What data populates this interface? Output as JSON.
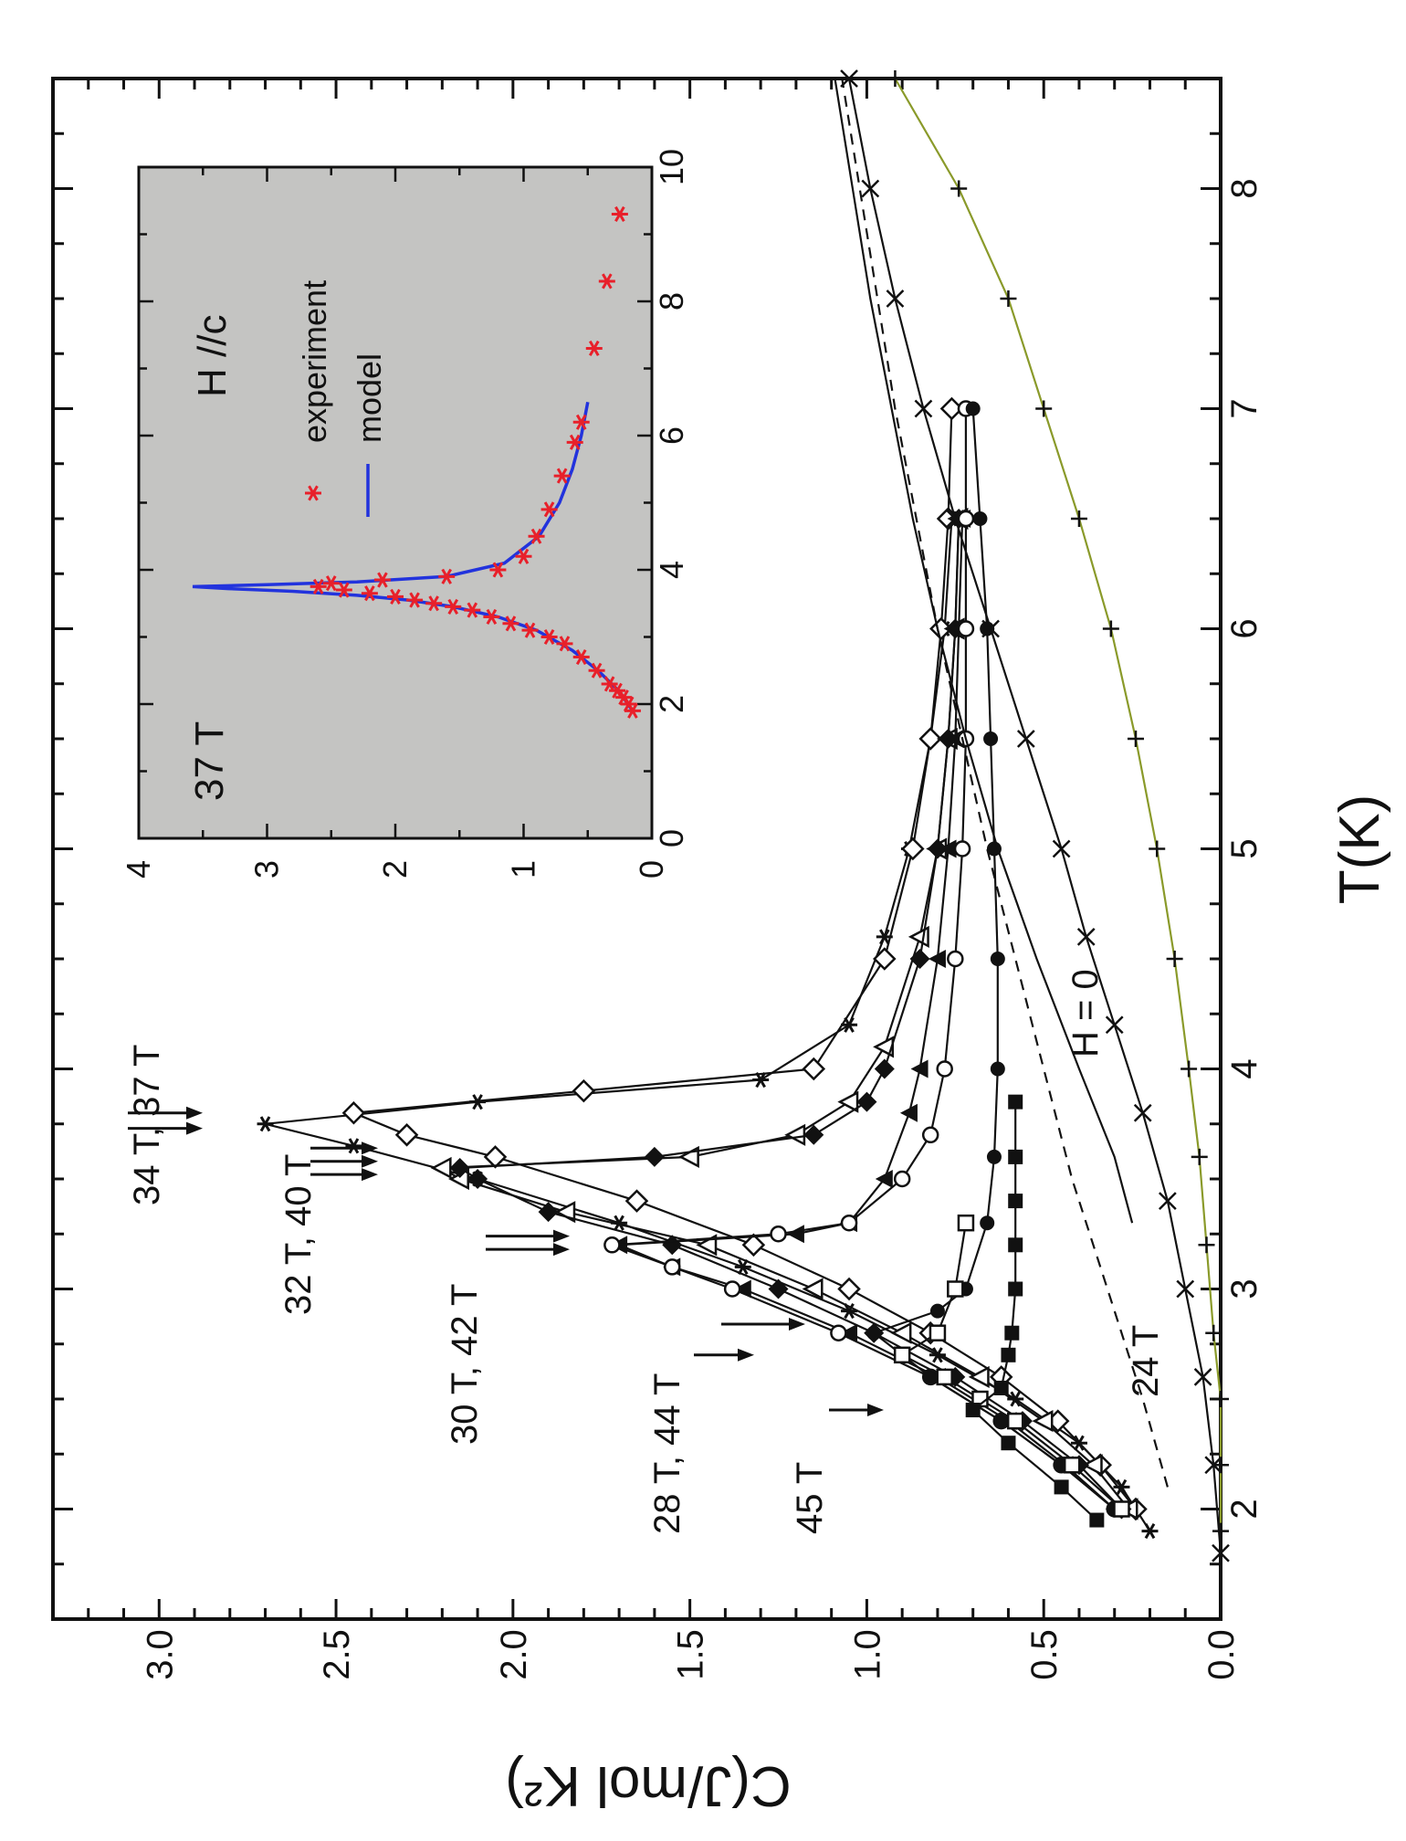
{
  "chart_data": [
    {
      "type": "line",
      "xlabel": "T(K)",
      "ylabel": "C(J/mol K²)",
      "xlim": [
        1.5,
        8.5
      ],
      "ylim": [
        0.0,
        3.3
      ],
      "xticks": [
        "2",
        "3",
        "4",
        "5",
        "6",
        "7",
        "8"
      ],
      "yticks": [
        "0.0",
        "0.5",
        "1.0",
        "1.5",
        "2.0",
        "2.5",
        "3.0"
      ],
      "grid": false,
      "annotations": [
        "34 T, 37 T",
        "32 T, 40 T",
        "30 T, 42 T",
        "28 T, 44 T",
        "45 T",
        "24 T",
        "H = 0"
      ],
      "series": [
        {
          "name": "34 T, 37 T",
          "marker": "star",
          "x": [
            1.9,
            2.1,
            2.3,
            2.5,
            2.7,
            2.9,
            3.1,
            3.3,
            3.5,
            3.65,
            3.75,
            3.85,
            3.95,
            4.2,
            4.6,
            5.0,
            5.5,
            6.0,
            6.5
          ],
          "y": [
            0.2,
            0.28,
            0.4,
            0.58,
            0.8,
            1.05,
            1.35,
            1.7,
            2.1,
            2.45,
            2.7,
            2.1,
            1.3,
            1.05,
            0.95,
            0.88,
            0.82,
            0.78,
            0.76
          ]
        },
        {
          "name": "",
          "marker": "diamond-open",
          "x": [
            2.0,
            2.2,
            2.4,
            2.6,
            2.8,
            3.0,
            3.2,
            3.4,
            3.6,
            3.7,
            3.8,
            3.9,
            4.0,
            4.5,
            5.0,
            5.5,
            6.0,
            6.5,
            7.0
          ],
          "y": [
            0.24,
            0.34,
            0.46,
            0.62,
            0.82,
            1.05,
            1.32,
            1.65,
            2.05,
            2.3,
            2.45,
            1.8,
            1.15,
            0.95,
            0.87,
            0.82,
            0.79,
            0.77,
            0.76
          ]
        },
        {
          "name": "32 T, 40 T",
          "marker": "triangle-open",
          "x": [
            2.0,
            2.2,
            2.4,
            2.6,
            2.8,
            3.0,
            3.2,
            3.35,
            3.5,
            3.55,
            3.6,
            3.7,
            3.85,
            4.1,
            4.6,
            5.0,
            5.5,
            6.0,
            6.5
          ],
          "y": [
            0.26,
            0.36,
            0.5,
            0.68,
            0.9,
            1.15,
            1.45,
            1.85,
            2.15,
            2.2,
            1.5,
            1.2,
            1.05,
            0.95,
            0.85,
            0.8,
            0.77,
            0.75,
            0.74
          ]
        },
        {
          "name": "",
          "marker": "diamond-filled",
          "x": [
            2.0,
            2.2,
            2.4,
            2.6,
            2.8,
            3.0,
            3.2,
            3.35,
            3.5,
            3.55,
            3.6,
            3.7,
            3.85,
            4.0,
            4.5,
            5.0,
            5.5,
            6.0,
            6.5
          ],
          "y": [
            0.28,
            0.4,
            0.56,
            0.75,
            0.98,
            1.25,
            1.55,
            1.9,
            2.1,
            2.15,
            1.6,
            1.15,
            1.0,
            0.95,
            0.85,
            0.8,
            0.77,
            0.75,
            0.74
          ]
        },
        {
          "name": "30 T, 42 T",
          "marker": "triangle-filled",
          "x": [
            2.0,
            2.2,
            2.4,
            2.6,
            2.8,
            3.0,
            3.1,
            3.2,
            3.25,
            3.3,
            3.5,
            3.8,
            4.0,
            4.5,
            5.0,
            5.5,
            6.0,
            6.5
          ],
          "y": [
            0.3,
            0.44,
            0.6,
            0.8,
            1.05,
            1.35,
            1.55,
            1.7,
            1.2,
            1.05,
            0.95,
            0.88,
            0.85,
            0.8,
            0.77,
            0.75,
            0.74,
            0.73
          ]
        },
        {
          "name": "",
          "marker": "circle-open",
          "x": [
            2.0,
            2.2,
            2.4,
            2.6,
            2.8,
            3.0,
            3.1,
            3.2,
            3.25,
            3.3,
            3.5,
            3.7,
            4.0,
            4.5,
            5.0,
            5.5,
            6.0,
            6.5,
            7.0
          ],
          "y": [
            0.3,
            0.45,
            0.62,
            0.82,
            1.08,
            1.38,
            1.55,
            1.72,
            1.25,
            1.05,
            0.9,
            0.82,
            0.78,
            0.75,
            0.73,
            0.72,
            0.72,
            0.72,
            0.72
          ]
        },
        {
          "name": "28 T, 44 T",
          "marker": "circle-filled",
          "x": [
            2.0,
            2.2,
            2.4,
            2.6,
            2.7,
            2.8,
            2.9,
            3.0,
            3.3,
            3.6,
            4.0,
            4.5,
            5.0,
            5.5,
            6.0,
            6.5,
            7.0
          ],
          "y": [
            0.3,
            0.45,
            0.62,
            0.82,
            0.9,
            0.98,
            0.8,
            0.72,
            0.66,
            0.64,
            0.63,
            0.63,
            0.64,
            0.65,
            0.66,
            0.68,
            0.7
          ]
        },
        {
          "name": "",
          "marker": "square-open",
          "x": [
            2.0,
            2.2,
            2.4,
            2.5,
            2.6,
            2.7,
            2.8,
            3.0,
            3.3
          ],
          "y": [
            0.28,
            0.42,
            0.58,
            0.68,
            0.78,
            0.9,
            0.8,
            0.75,
            0.72
          ]
        },
        {
          "name": "45 T",
          "marker": "square-filled",
          "x": [
            1.95,
            2.1,
            2.3,
            2.45,
            2.55,
            2.7,
            2.8,
            3.0,
            3.2,
            3.4,
            3.6,
            3.85
          ],
          "y": [
            0.35,
            0.45,
            0.6,
            0.7,
            0.62,
            0.6,
            0.59,
            0.58,
            0.58,
            0.58,
            0.58,
            0.58
          ]
        },
        {
          "name": "24 T",
          "marker": "none",
          "dashed": true,
          "x": [
            2.1,
            2.5,
            3.0,
            3.5,
            4.0,
            4.5,
            5.0,
            5.5,
            6.0,
            6.5,
            7.0,
            7.5,
            8.0,
            8.5
          ],
          "y": [
            0.15,
            0.22,
            0.32,
            0.42,
            0.5,
            0.58,
            0.66,
            0.73,
            0.8,
            0.86,
            0.92,
            0.97,
            1.02,
            1.07
          ]
        },
        {
          "name": "",
          "marker": "none",
          "x": [
            3.3,
            3.6,
            4.0,
            4.5,
            5.0,
            5.5,
            6.0,
            6.5,
            7.0,
            7.5,
            8.0,
            8.5
          ],
          "y": [
            0.25,
            0.3,
            0.4,
            0.52,
            0.63,
            0.72,
            0.8,
            0.87,
            0.93,
            0.99,
            1.04,
            1.09
          ]
        },
        {
          "name": "",
          "marker": "x",
          "x": [
            1.8,
            2.2,
            2.6,
            3.0,
            3.4,
            3.8,
            4.2,
            4.6,
            5.0,
            5.5,
            6.0,
            6.5,
            7.0,
            7.5,
            8.0,
            8.5
          ],
          "y": [
            0.0,
            0.02,
            0.05,
            0.1,
            0.15,
            0.22,
            0.3,
            0.38,
            0.45,
            0.55,
            0.65,
            0.75,
            0.84,
            0.92,
            0.99,
            1.05
          ]
        },
        {
          "name": "H = 0",
          "marker": "plus",
          "x": [
            1.9,
            2.2,
            2.5,
            2.8,
            3.2,
            3.6,
            4.0,
            4.5,
            5.0,
            5.5,
            6.0,
            6.5,
            7.0,
            7.5,
            8.0,
            8.5
          ],
          "y": [
            0.0,
            0.0,
            0.0,
            0.02,
            0.04,
            0.06,
            0.09,
            0.13,
            0.18,
            0.24,
            0.31,
            0.4,
            0.5,
            0.6,
            0.74,
            0.92
          ]
        }
      ]
    },
    {
      "type": "scatter",
      "xlim": [
        0,
        10
      ],
      "ylim": [
        0,
        4
      ],
      "xticks": [
        "0",
        "2",
        "4",
        "6",
        "8",
        "10"
      ],
      "yticks": [
        "0",
        "1",
        "2",
        "3",
        "4"
      ],
      "labels": [
        "37 T",
        "H //c"
      ],
      "legend": [
        "experiment",
        "model"
      ],
      "series": [
        {
          "name": "experiment",
          "marker": "star",
          "color": "#e8202a",
          "x": [
            1.9,
            2.0,
            2.1,
            2.2,
            2.3,
            2.5,
            2.7,
            2.9,
            3.0,
            3.1,
            3.2,
            3.3,
            3.4,
            3.45,
            3.5,
            3.55,
            3.6,
            3.65,
            3.7,
            3.75,
            3.8,
            3.85,
            3.9,
            4.0,
            4.2,
            4.5,
            4.9,
            5.4,
            5.9,
            6.2,
            7.3,
            8.3,
            9.3
          ],
          "y": [
            0.15,
            0.18,
            0.22,
            0.27,
            0.33,
            0.43,
            0.55,
            0.68,
            0.8,
            0.95,
            1.1,
            1.25,
            1.4,
            1.55,
            1.7,
            1.85,
            2.0,
            2.2,
            2.4,
            2.6,
            2.5,
            2.1,
            1.6,
            1.2,
            1.0,
            0.9,
            0.8,
            0.7,
            0.6,
            0.55,
            0.45,
            0.35,
            0.25
          ]
        },
        {
          "name": "model",
          "marker": "none",
          "color": "#2233dd",
          "x": [
            1.9,
            2.2,
            2.5,
            2.8,
            3.1,
            3.3,
            3.45,
            3.55,
            3.62,
            3.68,
            3.72,
            3.75,
            3.78,
            3.82,
            3.9,
            4.1,
            4.5,
            5.0,
            5.5,
            6.0,
            6.5
          ],
          "y": [
            0.15,
            0.26,
            0.42,
            0.62,
            0.9,
            1.2,
            1.55,
            1.9,
            2.3,
            2.8,
            3.3,
            3.58,
            3.0,
            2.3,
            1.6,
            1.15,
            0.88,
            0.72,
            0.62,
            0.55,
            0.5
          ]
        }
      ]
    }
  ]
}
